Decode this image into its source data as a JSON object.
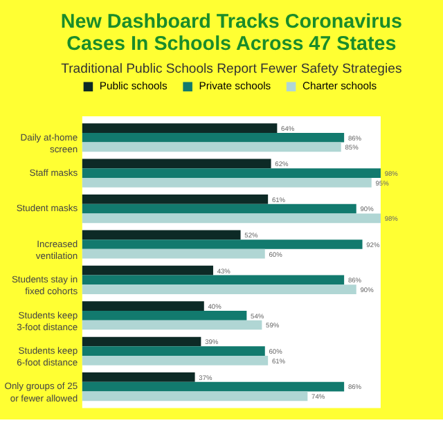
{
  "chart_data": {
    "type": "bar",
    "orientation": "horizontal",
    "title": "New Dashboard Tracks Coronavirus Cases In Schools Across 47 States",
    "subtitle": "Traditional Public Schools Report Fewer Safety Strategies",
    "categories": [
      "Daily at-home screen",
      "Staff masks",
      "Student masks",
      "Increased ventilation",
      "Students stay in fixed cohorts",
      "Students keep 3-foot distance",
      "Students keep 6-foot distance",
      "Only groups of 25 or fewer allowed"
    ],
    "series": [
      {
        "name": "Public schools",
        "color": "#0d2a26",
        "values": [
          64,
          62,
          61,
          52,
          43,
          40,
          39,
          37
        ],
        "value_labels": [
          "64%",
          "62%",
          "61%",
          "52%",
          "43%",
          "40%",
          "39%",
          "37%"
        ]
      },
      {
        "name": "Private schools",
        "color": "#127a6e",
        "values": [
          86,
          98,
          90,
          92,
          86,
          54,
          60,
          86
        ],
        "value_labels": [
          "86%",
          "98%",
          "90%",
          "92%",
          "86%",
          "54%",
          "60%",
          "86%"
        ]
      },
      {
        "name": "Charter schools",
        "color": "#b0d6d4",
        "values": [
          85,
          95,
          98,
          60,
          90,
          59,
          61,
          74
        ],
        "value_labels": [
          "85%",
          "95%",
          "98%",
          "60%",
          "90%",
          "59%",
          "61%",
          "74%"
        ]
      }
    ],
    "legend": "top"
  }
}
